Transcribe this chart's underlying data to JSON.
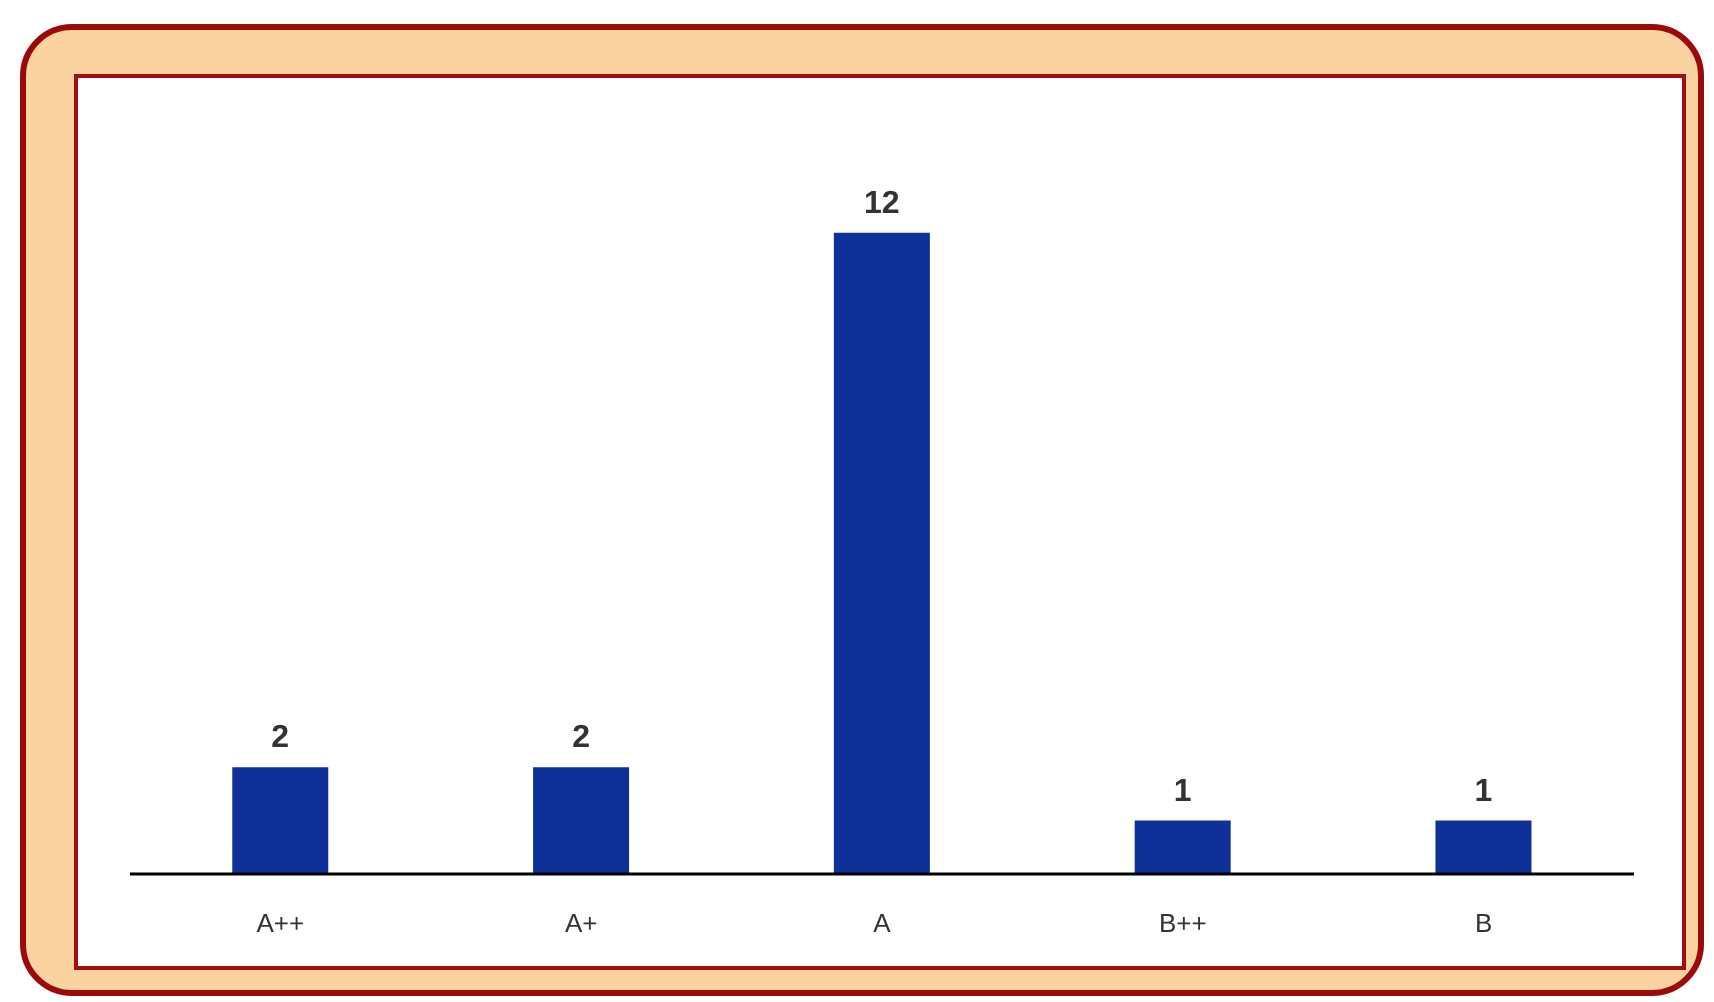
{
  "chart_data": {
    "type": "bar",
    "categories": [
      "A++",
      "A+",
      "A",
      "B++",
      "B"
    ],
    "values": [
      2,
      2,
      12,
      1,
      1
    ],
    "color": "#0f2f99",
    "data_labels": true
  }
}
